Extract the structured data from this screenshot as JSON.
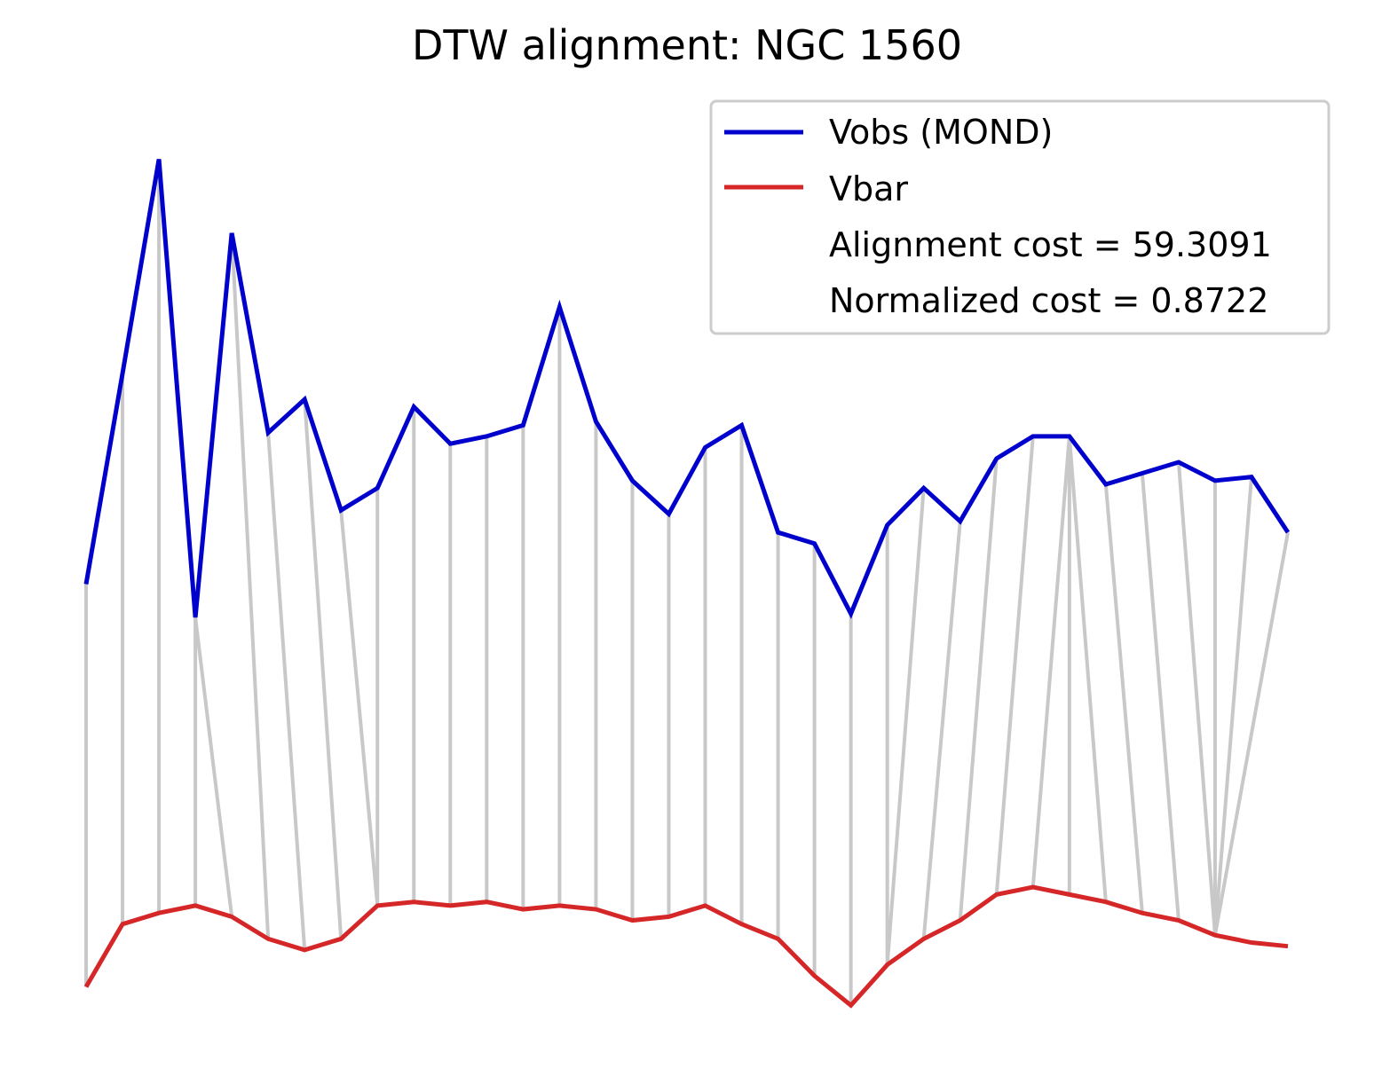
{
  "chart_data": {
    "type": "line",
    "title": "DTW alignment: NGC 1560",
    "xlabel": "",
    "ylabel": "",
    "axes_visible": false,
    "grid": false,
    "legend_position": "top-right",
    "series": [
      {
        "name": "Vobs (MOND)",
        "color": "#0000cc",
        "values": [
          0.18,
          0.75,
          1.33,
          0.09,
          1.13,
          0.59,
          0.68,
          0.38,
          0.44,
          0.66,
          0.56,
          0.58,
          0.61,
          0.93,
          0.62,
          0.46,
          0.37,
          0.55,
          0.61,
          0.32,
          0.29,
          0.1,
          0.34,
          0.44,
          0.35,
          0.52,
          0.58,
          0.58,
          0.45,
          0.48,
          0.51,
          0.46,
          0.47,
          0.32
        ]
      },
      {
        "name": "Vbar",
        "color": "#d62728",
        "values": [
          -0.91,
          -0.74,
          -0.71,
          -0.69,
          -0.72,
          -0.78,
          -0.81,
          -0.78,
          -0.69,
          -0.68,
          -0.69,
          -0.68,
          -0.7,
          -0.69,
          -0.7,
          -0.73,
          -0.72,
          -0.69,
          -0.74,
          -0.78,
          -0.88,
          -0.96,
          -0.85,
          -0.78,
          -0.73,
          -0.66,
          -0.64,
          -0.66,
          -0.68,
          -0.71,
          -0.73,
          -0.77,
          -0.79,
          -0.8
        ]
      }
    ],
    "alignment_path": [
      [
        0,
        0
      ],
      [
        1,
        1
      ],
      [
        2,
        2
      ],
      [
        3,
        3
      ],
      [
        3,
        4
      ],
      [
        4,
        5
      ],
      [
        5,
        6
      ],
      [
        6,
        7
      ],
      [
        7,
        8
      ],
      [
        8,
        8
      ],
      [
        9,
        9
      ],
      [
        10,
        10
      ],
      [
        11,
        11
      ],
      [
        12,
        12
      ],
      [
        13,
        13
      ],
      [
        14,
        14
      ],
      [
        15,
        15
      ],
      [
        16,
        16
      ],
      [
        17,
        17
      ],
      [
        18,
        18
      ],
      [
        19,
        19
      ],
      [
        20,
        20
      ],
      [
        21,
        21
      ],
      [
        22,
        22
      ],
      [
        23,
        22
      ],
      [
        24,
        23
      ],
      [
        25,
        24
      ],
      [
        26,
        25
      ],
      [
        27,
        26
      ],
      [
        27,
        27
      ],
      [
        27,
        28
      ],
      [
        28,
        29
      ],
      [
        29,
        30
      ],
      [
        30,
        31
      ],
      [
        31,
        31
      ],
      [
        32,
        31
      ],
      [
        33,
        31
      ]
    ],
    "path_color": "#c8c8c8",
    "annotations": [
      "Alignment cost = 59.3091",
      "Normalized cost = 0.8722"
    ],
    "ylim": [
      -1.0,
      1.42
    ]
  }
}
